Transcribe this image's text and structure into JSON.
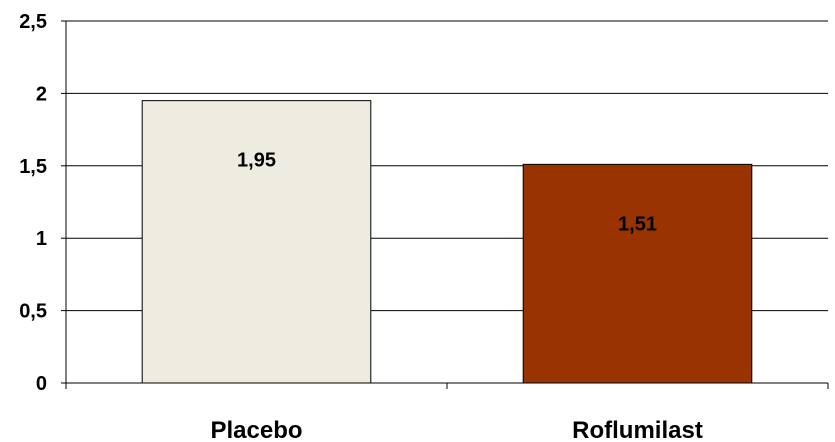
{
  "chart_data": {
    "type": "bar",
    "categories": [
      "Placebo",
      "Roflumilast"
    ],
    "values": [
      1.95,
      1.51
    ],
    "data_labels": [
      "1,95",
      "1,51"
    ],
    "bar_colors": [
      "#eeebe0",
      "#993300"
    ],
    "title": "",
    "xlabel": "",
    "ylabel": "",
    "ylim": [
      0,
      2.5
    ],
    "yticks": [
      0,
      0.5,
      1,
      1.5,
      2,
      2.5
    ],
    "ytick_labels": [
      "0",
      "0,5",
      "1",
      "1,5",
      "2",
      "2,5"
    ],
    "grid": true,
    "legend": "none"
  }
}
